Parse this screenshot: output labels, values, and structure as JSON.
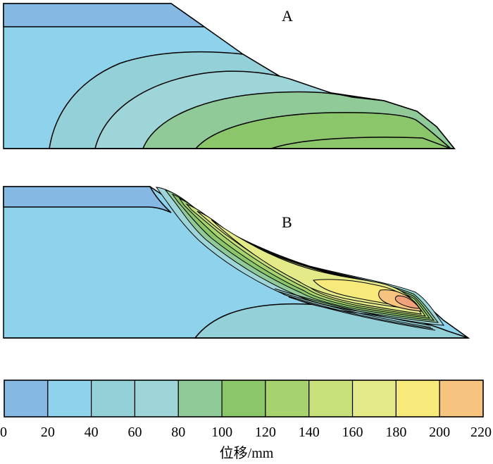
{
  "panels": [
    {
      "id": "A",
      "label": "A"
    },
    {
      "id": "B",
      "label": "B"
    }
  ],
  "legend": {
    "title": "位移/mm",
    "ticks": [
      "0",
      "20",
      "40",
      "60",
      "80",
      "100",
      "120",
      "140",
      "160",
      "180",
      "200",
      "220"
    ],
    "bins": [
      {
        "range": "0-20",
        "color": "#86b8e4"
      },
      {
        "range": "20-40",
        "color": "#8fd2eb"
      },
      {
        "range": "40-60",
        "color": "#94d0d8"
      },
      {
        "range": "60-80",
        "color": "#9dd5d8"
      },
      {
        "range": "80-100",
        "color": "#8fca98"
      },
      {
        "range": "100-120",
        "color": "#8cc66a"
      },
      {
        "range": "120-140",
        "color": "#a6d36e"
      },
      {
        "range": "140-160",
        "color": "#c7e07a"
      },
      {
        "range": "160-180",
        "color": "#e5ea88"
      },
      {
        "range": "180-200",
        "color": "#f8ea7a"
      },
      {
        "range": "200-220",
        "color": "#f7c47f"
      }
    ]
  },
  "colors": {
    "band_0_20": "#86b8e4",
    "band_20_40": "#8fd2eb",
    "band_40_60": "#94d0d8",
    "band_60_80": "#9dd5d8",
    "band_80_100": "#8fca98",
    "band_100_120": "#8cc66a",
    "band_120_140": "#a6d36e",
    "band_140_160": "#c7e07a",
    "band_160_180": "#e5ea88",
    "band_180_200": "#f8ea7a",
    "band_200_220": "#f7c47f",
    "band_220_plus": "#f2a27a"
  }
}
